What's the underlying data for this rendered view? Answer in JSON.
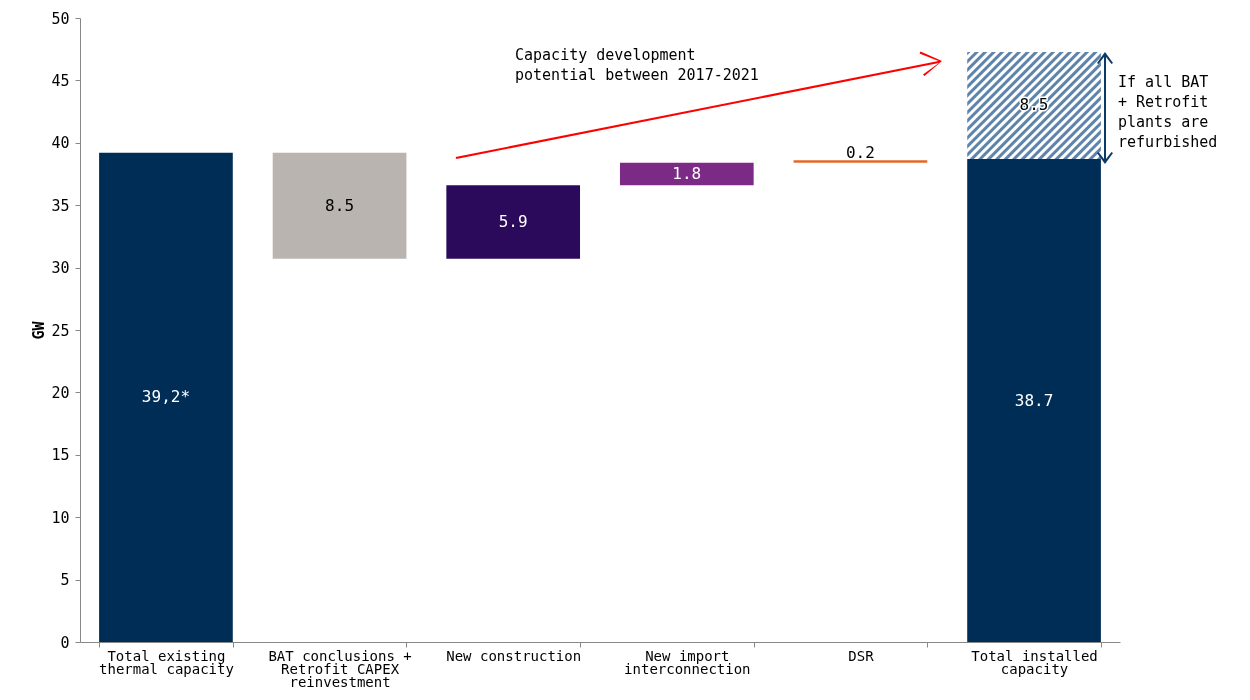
{
  "chart_data": {
    "type": "bar",
    "ylabel": "GW",
    "categories": [
      "Total existing thermal capacity",
      "BAT conclusions + Retrofit CAPEX reinvestment",
      "New construction",
      "New import interconnection",
      "DSR",
      "Total installed capacity"
    ],
    "base": [
      0,
      30.7,
      30.7,
      36.6,
      38.4,
      0
    ],
    "values": [
      39.2,
      8.5,
      5.9,
      1.8,
      0.2,
      38.7
    ],
    "colors": [
      "#002d55",
      "#b9b4b0",
      "#2b0a5c",
      "#7b2a86",
      "#e0692a",
      "#002d55"
    ],
    "value_labels": [
      "39,2*",
      "8.5",
      "5.9",
      "1.8",
      "0.2",
      "38.7"
    ],
    "ylim": [
      0,
      50
    ],
    "yticks": [
      0,
      5,
      10,
      15,
      20,
      25,
      30,
      35,
      40,
      45,
      50
    ],
    "grid": false,
    "annotations": [
      "Capacity development potential between 2017-2021",
      "If all BAT + Retrofit plants are refurbished",
      "8.5"
    ]
  }
}
